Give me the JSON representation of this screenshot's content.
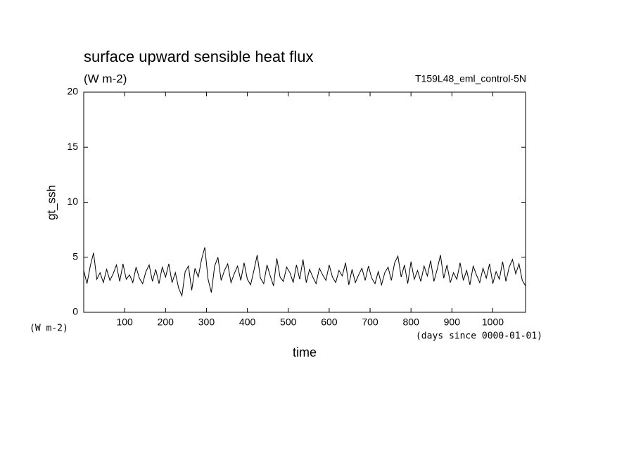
{
  "chart_data": {
    "type": "line",
    "title": "surface upward sensible heat flux",
    "subtitle": "(W m-2)",
    "annotation": "T159L48_eml_control-5N",
    "ylabel": "gt_ssh",
    "xlabel": "time",
    "yunits": "(W m-2)",
    "xunits": "(days since 0000-01-01)",
    "xlim": [
      0,
      1080
    ],
    "xticks": [
      100,
      200,
      300,
      400,
      500,
      600,
      700,
      800,
      900,
      1000
    ],
    "ylim": [
      0,
      20
    ],
    "yticks": [
      0,
      5,
      10,
      15,
      20
    ],
    "grid": false,
    "series": [
      {
        "name": "gt_ssh",
        "color": "#000000",
        "x": [
          0,
          8,
          16,
          24,
          32,
          40,
          48,
          56,
          64,
          72,
          80,
          88,
          96,
          104,
          112,
          120,
          128,
          136,
          144,
          152,
          160,
          168,
          176,
          184,
          192,
          200,
          208,
          216,
          224,
          232,
          240,
          248,
          256,
          264,
          272,
          280,
          288,
          296,
          304,
          312,
          320,
          328,
          336,
          344,
          352,
          360,
          368,
          376,
          384,
          392,
          400,
          408,
          416,
          424,
          432,
          440,
          448,
          456,
          464,
          472,
          480,
          488,
          496,
          504,
          512,
          520,
          528,
          536,
          544,
          552,
          560,
          568,
          576,
          584,
          592,
          600,
          608,
          616,
          624,
          632,
          640,
          648,
          656,
          664,
          672,
          680,
          688,
          696,
          704,
          712,
          720,
          728,
          736,
          744,
          752,
          760,
          768,
          776,
          784,
          792,
          800,
          808,
          816,
          824,
          832,
          840,
          848,
          856,
          864,
          872,
          880,
          888,
          896,
          904,
          912,
          920,
          928,
          936,
          944,
          952,
          960,
          968,
          976,
          984,
          992,
          1000,
          1008,
          1016,
          1024,
          1032,
          1040,
          1048,
          1056,
          1064,
          1072,
          1080
        ],
        "values": [
          3.8,
          2.6,
          4.2,
          5.4,
          3.0,
          3.6,
          2.7,
          3.9,
          2.9,
          3.5,
          4.3,
          2.8,
          4.4,
          3.0,
          3.4,
          2.7,
          4.1,
          3.1,
          2.6,
          3.7,
          4.3,
          2.8,
          3.9,
          2.6,
          4.1,
          3.2,
          4.4,
          2.7,
          3.6,
          2.2,
          1.5,
          3.7,
          4.2,
          2.0,
          4.0,
          3.2,
          4.8,
          5.9,
          3.0,
          1.8,
          4.2,
          5.0,
          2.9,
          3.8,
          4.4,
          2.7,
          3.5,
          4.2,
          2.9,
          4.5,
          3.0,
          2.5,
          3.8,
          5.2,
          3.1,
          2.6,
          4.3,
          3.3,
          2.4,
          4.9,
          3.2,
          2.8,
          4.1,
          3.6,
          2.7,
          4.3,
          3.0,
          4.8,
          2.7,
          3.9,
          3.2,
          2.6,
          4.0,
          3.4,
          2.9,
          4.3,
          3.2,
          2.7,
          3.8,
          3.3,
          4.5,
          2.5,
          3.9,
          2.7,
          3.4,
          4.0,
          2.9,
          4.2,
          3.1,
          2.6,
          3.7,
          2.5,
          3.6,
          4.1,
          2.9,
          4.5,
          5.1,
          3.2,
          4.3,
          2.6,
          4.6,
          3.0,
          3.8,
          2.8,
          4.2,
          3.3,
          4.7,
          2.8,
          3.9,
          5.2,
          3.1,
          4.3,
          2.7,
          3.6,
          3.0,
          4.5,
          2.9,
          3.8,
          2.5,
          4.2,
          3.4,
          2.7,
          4.0,
          3.1,
          4.4,
          2.6,
          3.7,
          3.0,
          4.6,
          2.8,
          4.1,
          4.8,
          3.5,
          4.4,
          2.9,
          2.4
        ]
      }
    ]
  }
}
